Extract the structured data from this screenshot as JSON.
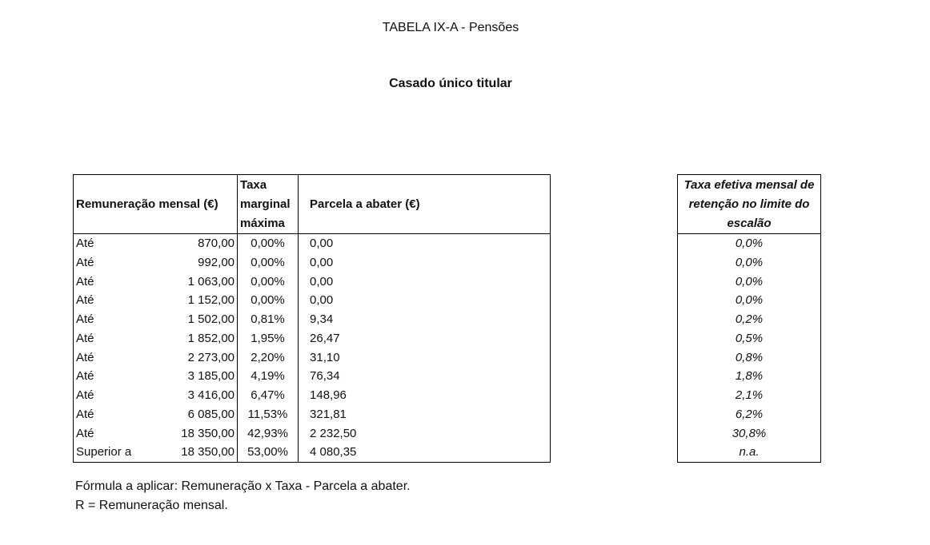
{
  "title": "TABELA IX-A - Pensões",
  "subtitle": "Casado único titular",
  "table": {
    "headers": [
      "Remuneração mensal (€)",
      "Taxa marginal máxima",
      "Parcela a abater (€)"
    ],
    "rows": [
      [
        "Até",
        "870,00",
        "0,00%",
        "0,00"
      ],
      [
        "Até",
        "992,00",
        "0,00%",
        "0,00"
      ],
      [
        "Até",
        "1 063,00",
        "0,00%",
        "0,00"
      ],
      [
        "Até",
        "1 152,00",
        "0,00%",
        "0,00"
      ],
      [
        "Até",
        "1 502,00",
        "0,81%",
        "9,34"
      ],
      [
        "Até",
        "1 852,00",
        "1,95%",
        "26,47"
      ],
      [
        "Até",
        "2 273,00",
        "2,20%",
        "31,10"
      ],
      [
        "Até",
        "3 185,00",
        "4,19%",
        "76,34"
      ],
      [
        "Até",
        "3 416,00",
        "6,47%",
        "148,96"
      ],
      [
        "Até",
        "6 085,00",
        "11,53%",
        "321,81"
      ],
      [
        "Até",
        "18 350,00",
        "42,93%",
        "2 232,50"
      ],
      [
        "Superior a",
        "18 350,00",
        "53,00%",
        "4 080,35"
      ]
    ]
  },
  "effective_table": {
    "header": "Taxa efetiva mensal de retenção no limite do escalão",
    "rows": [
      "0,0%",
      "0,0%",
      "0,0%",
      "0,0%",
      "0,2%",
      "0,5%",
      "0,8%",
      "1,8%",
      "2,1%",
      "6,2%",
      "30,8%",
      "n.a."
    ]
  },
  "notes": [
    "Fórmula a aplicar: Remuneração x Taxa - Parcela a abater.",
    "R = Remuneração mensal."
  ]
}
